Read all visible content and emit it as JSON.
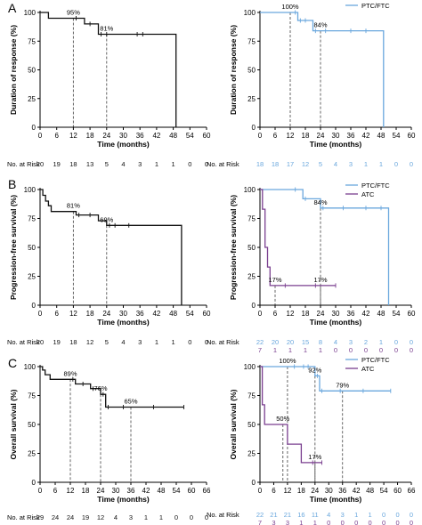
{
  "colors": {
    "black": "#111111",
    "blue": "#6aa7dd",
    "purple": "#7a3f8f"
  },
  "risk_label": "No. at Risk",
  "chart_data": [
    {
      "id": "A-left",
      "type": "line",
      "panel_letter": "A",
      "ylabel": "Duration of response (%)",
      "xlabel": "Time (months)",
      "xlim": [
        0,
        60
      ],
      "ylim": [
        0,
        100
      ],
      "xticks": [
        0,
        6,
        12,
        18,
        24,
        30,
        36,
        42,
        48,
        54,
        60
      ],
      "yticks": [
        0,
        25,
        50,
        75,
        100
      ],
      "series": [
        {
          "color": "black",
          "x": [
            0,
            3,
            3,
            12,
            12,
            16,
            16,
            21,
            21,
            49,
            49
          ],
          "y": [
            100,
            100,
            95,
            95,
            95,
            95,
            90,
            90,
            81,
            81,
            0
          ],
          "censor": [
            [
              13,
              95
            ],
            [
              18,
              90
            ],
            [
              22,
              81
            ],
            [
              24,
              81
            ],
            [
              35,
              81
            ],
            [
              37,
              81
            ]
          ]
        }
      ],
      "annotations": [
        {
          "x": 12,
          "y": 95,
          "text": "95%"
        },
        {
          "x": 24,
          "y": 81,
          "text": "81%"
        }
      ],
      "risk_rows": [
        {
          "color": "black",
          "values": [
            "20",
            "19",
            "18",
            "13",
            "5",
            "4",
            "3",
            "1",
            "1",
            "0",
            "0"
          ]
        }
      ]
    },
    {
      "id": "A-right",
      "type": "line",
      "ylabel": "Duration of response (%)",
      "xlabel": "Time (months)",
      "xlim": [
        0,
        60
      ],
      "ylim": [
        0,
        100
      ],
      "xticks": [
        0,
        6,
        12,
        18,
        24,
        30,
        36,
        42,
        48,
        54,
        60
      ],
      "yticks": [
        0,
        25,
        50,
        75,
        100
      ],
      "legend": [
        "PTC/FTC"
      ],
      "legend_placement": "top-right",
      "series": [
        {
          "color": "blue",
          "x": [
            0,
            15,
            15,
            21,
            21,
            49,
            49
          ],
          "y": [
            100,
            100,
            93,
            93,
            84,
            84,
            0
          ],
          "censor": [
            [
              14,
              100
            ],
            [
              16,
              93
            ],
            [
              18,
              93
            ],
            [
              22,
              84
            ],
            [
              26,
              84
            ],
            [
              36,
              84
            ],
            [
              42,
              84
            ]
          ]
        }
      ],
      "annotations": [
        {
          "x": 12,
          "y": 100,
          "text": "100%"
        },
        {
          "x": 24,
          "y": 84,
          "text": "84%"
        }
      ],
      "risk_rows": [
        {
          "color": "blue",
          "values": [
            "18",
            "18",
            "17",
            "12",
            "5",
            "4",
            "3",
            "1",
            "1",
            "0",
            "0"
          ]
        }
      ]
    },
    {
      "id": "B-left",
      "type": "line",
      "panel_letter": "B",
      "ylabel": "Progression-free survival (%)",
      "xlabel": "Time (months)",
      "xlim": [
        0,
        60
      ],
      "ylim": [
        0,
        100
      ],
      "xticks": [
        0,
        6,
        12,
        18,
        24,
        30,
        36,
        42,
        48,
        54,
        60
      ],
      "yticks": [
        0,
        25,
        50,
        75,
        100
      ],
      "series": [
        {
          "color": "black",
          "x": [
            0,
            1,
            1,
            2,
            2,
            3,
            3,
            4,
            4,
            13,
            13,
            21,
            21,
            24,
            24,
            51,
            51
          ],
          "y": [
            100,
            100,
            95,
            95,
            90,
            90,
            86,
            86,
            81,
            81,
            78,
            78,
            73,
            73,
            69,
            69,
            0
          ],
          "censor": [
            [
              14,
              78
            ],
            [
              18,
              78
            ],
            [
              25,
              69
            ],
            [
              27,
              69
            ],
            [
              32,
              69
            ]
          ]
        }
      ],
      "annotations": [
        {
          "x": 12,
          "y": 81,
          "text": "81%"
        },
        {
          "x": 24,
          "y": 69,
          "text": "69%"
        }
      ],
      "risk_rows": [
        {
          "color": "black",
          "values": [
            "20",
            "19",
            "18",
            "12",
            "5",
            "4",
            "3",
            "1",
            "1",
            "0",
            "0"
          ]
        }
      ]
    },
    {
      "id": "B-right",
      "type": "line",
      "ylabel": "Progression-free survival (%)",
      "xlabel": "Time (months)",
      "xlim": [
        0,
        60
      ],
      "ylim": [
        0,
        100
      ],
      "xticks": [
        0,
        6,
        12,
        18,
        24,
        30,
        36,
        42,
        48,
        54,
        60
      ],
      "yticks": [
        0,
        25,
        50,
        75,
        100
      ],
      "legend": [
        "PTC/FTC",
        "ATC"
      ],
      "legend_placement": "top-right",
      "series": [
        {
          "color": "blue",
          "x": [
            0,
            17,
            17,
            24,
            24,
            51,
            51
          ],
          "y": [
            100,
            100,
            92,
            92,
            84,
            84,
            0
          ],
          "censor": [
            [
              14,
              100
            ],
            [
              18,
              92
            ],
            [
              25,
              84
            ],
            [
              33,
              84
            ],
            [
              42,
              84
            ],
            [
              48,
              84
            ]
          ]
        },
        {
          "color": "purple",
          "x": [
            0,
            1,
            1,
            2,
            2,
            3,
            3,
            4,
            4,
            30
          ],
          "y": [
            100,
            100,
            83,
            83,
            50,
            50,
            33,
            33,
            17,
            17
          ],
          "censor": [
            [
              10,
              17
            ],
            [
              22,
              17
            ],
            [
              30,
              17
            ]
          ]
        }
      ],
      "annotations": [
        {
          "x": 24,
          "y": 84,
          "text": "84%"
        },
        {
          "x": 6,
          "y": 17,
          "text": "17%"
        },
        {
          "x": 24,
          "y": 17,
          "text": "17%"
        }
      ],
      "risk_rows": [
        {
          "color": "blue",
          "values": [
            "22",
            "20",
            "20",
            "15",
            "8",
            "4",
            "3",
            "2",
            "1",
            "0",
            "0"
          ]
        },
        {
          "color": "purple",
          "values": [
            "7",
            "1",
            "1",
            "1",
            "1",
            "0",
            "0",
            "0",
            "0",
            "0",
            "0"
          ]
        }
      ]
    },
    {
      "id": "C-left",
      "type": "line",
      "panel_letter": "C",
      "ylabel": "Overall survival (%)",
      "xlabel": "Time (months)",
      "xlim": [
        0,
        66
      ],
      "ylim": [
        0,
        100
      ],
      "xticks": [
        0,
        6,
        12,
        18,
        24,
        30,
        36,
        42,
        48,
        54,
        60,
        66
      ],
      "yticks": [
        0,
        25,
        50,
        75,
        100
      ],
      "series": [
        {
          "color": "black",
          "x": [
            0,
            1,
            1,
            2,
            2,
            4,
            4,
            14,
            14,
            20,
            20,
            24,
            24,
            26,
            26,
            57
          ],
          "y": [
            100,
            100,
            97,
            97,
            93,
            93,
            89,
            89,
            85,
            85,
            81,
            81,
            76,
            76,
            65,
            65
          ],
          "censor": [
            [
              13,
              89
            ],
            [
              17,
              85
            ],
            [
              21,
              81
            ],
            [
              25,
              76
            ],
            [
              27,
              65
            ],
            [
              33,
              65
            ],
            [
              45,
              65
            ],
            [
              57,
              65
            ]
          ]
        }
      ],
      "annotations": [
        {
          "x": 12,
          "y": 89,
          "text": "89%"
        },
        {
          "x": 24,
          "y": 76,
          "text": "76%"
        },
        {
          "x": 36,
          "y": 65,
          "text": "65%"
        }
      ],
      "risk_rows": [
        {
          "color": "black",
          "values": [
            "29",
            "24",
            "24",
            "19",
            "12",
            "4",
            "3",
            "1",
            "1",
            "0",
            "0",
            "0"
          ]
        }
      ]
    },
    {
      "id": "C-right",
      "type": "line",
      "ylabel": "Overall survival (%)",
      "xlabel": "Time (months)",
      "xlim": [
        0,
        66
      ],
      "ylim": [
        0,
        100
      ],
      "xticks": [
        0,
        6,
        12,
        18,
        24,
        30,
        36,
        42,
        48,
        54,
        60,
        66
      ],
      "yticks": [
        0,
        25,
        50,
        75,
        100
      ],
      "legend": [
        "PTC/FTC",
        "ATC"
      ],
      "legend_placement": "top-right",
      "series": [
        {
          "color": "blue",
          "x": [
            0,
            24,
            24,
            26,
            26,
            57
          ],
          "y": [
            100,
            100,
            92,
            92,
            79,
            79
          ],
          "censor": [
            [
              15,
              100
            ],
            [
              19,
              100
            ],
            [
              21,
              100
            ],
            [
              25,
              92
            ],
            [
              27,
              79
            ],
            [
              35,
              79
            ],
            [
              45,
              79
            ],
            [
              57,
              79
            ]
          ]
        },
        {
          "color": "purple",
          "x": [
            0,
            1,
            1,
            2,
            2,
            12,
            12,
            18,
            18,
            20,
            20,
            27
          ],
          "y": [
            100,
            100,
            67,
            67,
            50,
            50,
            33,
            33,
            17,
            17,
            17,
            17
          ],
          "censor": [
            [
              23,
              17
            ],
            [
              27,
              17
            ]
          ]
        }
      ],
      "annotations": [
        {
          "x": 12,
          "y": 100,
          "text": "100%"
        },
        {
          "x": 24,
          "y": 92,
          "text": "92%"
        },
        {
          "x": 36,
          "y": 79,
          "text": "79%"
        },
        {
          "x": 10,
          "y": 50,
          "text": "50%"
        },
        {
          "x": 24,
          "y": 17,
          "text": "17%"
        }
      ],
      "risk_rows": [
        {
          "color": "blue",
          "values": [
            "22",
            "21",
            "21",
            "16",
            "11",
            "4",
            "3",
            "1",
            "1",
            "0",
            "0",
            "0"
          ]
        },
        {
          "color": "purple",
          "values": [
            "7",
            "3",
            "3",
            "1",
            "1",
            "0",
            "0",
            "0",
            "0",
            "0",
            "0",
            "0"
          ]
        }
      ]
    }
  ]
}
